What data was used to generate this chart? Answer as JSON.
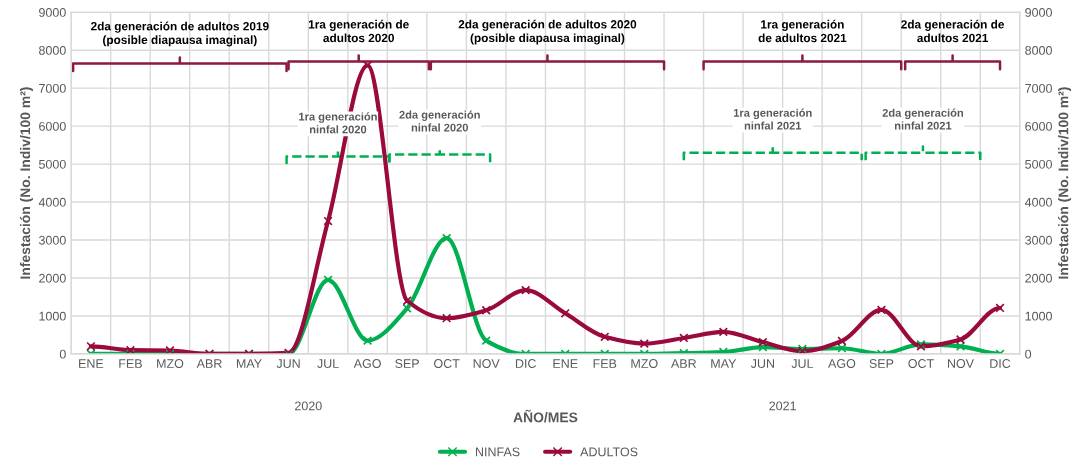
{
  "chart_data": {
    "type": "line",
    "xlabel": "AÑO/MES",
    "ylabel": "Infestación (No. Indiv/100 m²)",
    "y2label": "Infestación (No. Indiv/100 m²)",
    "categories": [
      "ENE",
      "FEB",
      "MZO",
      "ABR",
      "MAY",
      "JUN",
      "JUL",
      "AGO",
      "SEP",
      "OCT",
      "NOV",
      "DIC",
      "ENE",
      "FEB",
      "MZO",
      "ABR",
      "MAY",
      "JUN",
      "JUL",
      "AGO",
      "SEP",
      "OCT",
      "NOV",
      "DIC"
    ],
    "series": [
      {
        "name": "NINFAS",
        "color": "#00b050",
        "values": [
          0,
          0,
          0,
          0,
          0,
          0,
          1950,
          350,
          1200,
          3050,
          350,
          0,
          0,
          0,
          0,
          20,
          50,
          180,
          130,
          150,
          0,
          250,
          200,
          0
        ]
      },
      {
        "name": "ADULTOS",
        "color": "#9b0a3c",
        "values": [
          200,
          100,
          90,
          0,
          0,
          30,
          3500,
          7600,
          1400,
          940,
          1150,
          1680,
          1070,
          450,
          270,
          420,
          580,
          310,
          70,
          340,
          1160,
          200,
          380,
          1210
        ]
      }
    ],
    "ylim": [
      0,
      9000
    ],
    "yticks": [
      0,
      1000,
      2000,
      3000,
      4000,
      5000,
      6000,
      7000,
      8000,
      9000
    ],
    "y2lim": [
      0,
      9000
    ],
    "y2ticks": [
      0,
      1000,
      2000,
      3000,
      4000,
      5000,
      6000,
      7000,
      8000,
      9000
    ],
    "annotations": [
      "2da generación de adultos 2019\n(posible diapausa imaginal)",
      "1ra generación de\nadultos 2020",
      "2da generación de adultos 2020\n(posible diapausa imaginal)",
      "1ra generación\nde adultos 2021",
      "2da generación de\nadultos 2021",
      "1ra generación\nninfal 2020",
      "2da generación\nninfal 2020",
      "1ra generación\nninfal 2021",
      "2da generación\nninfal 2021",
      "2020",
      "2021"
    ],
    "grid": true,
    "legend": "bottom",
    "marker": "cross",
    "line_style": "solid"
  }
}
